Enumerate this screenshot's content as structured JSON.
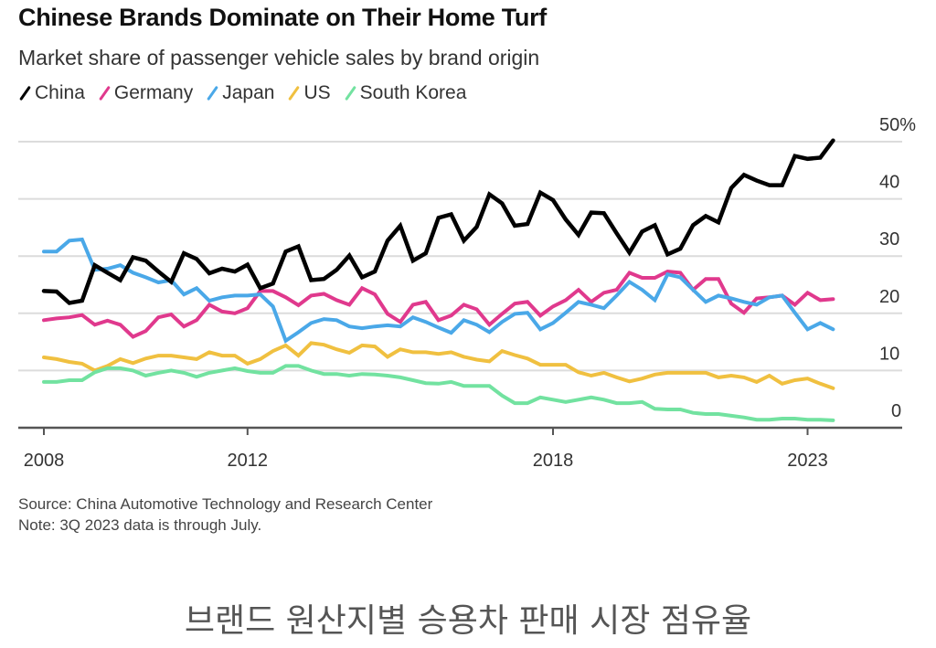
{
  "header": {
    "title": "Chinese Brands Dominate on Their Home Turf",
    "subtitle": "Market share of passenger vehicle sales by brand origin"
  },
  "legend": [
    {
      "label": "China",
      "color": "#000000"
    },
    {
      "label": "Germany",
      "color": "#e0398d"
    },
    {
      "label": "Japan",
      "color": "#4aa8e8"
    },
    {
      "label": "US",
      "color": "#f0c040"
    },
    {
      "label": "South Korea",
      "color": "#72e2a0"
    }
  ],
  "footer": {
    "source": "Source: China Automotive Technology and Research Center",
    "note": "Note: 3Q 2023 data is through July."
  },
  "caption": "브랜드 원산지별 승용차 판매 시장 점유율",
  "chart_data": {
    "type": "line",
    "title": "Chinese Brands Dominate on Their Home Turf",
    "subtitle": "Market share of passenger vehicle sales by brand origin",
    "xlabel": "",
    "ylabel": "",
    "x_start": "2008 Q1",
    "x_end": "2023 Q3",
    "x_frequency": "quarterly",
    "x_ticks": [
      2008,
      2012,
      2018,
      2023
    ],
    "y_ticks": [
      "0",
      "10",
      "20",
      "30",
      "40",
      "50%"
    ],
    "ylim": [
      0,
      50
    ],
    "y_axis_position": "right",
    "grid": true,
    "legend_position": "top-left",
    "series": [
      {
        "name": "China",
        "color": "#000000",
        "values": [
          23.9,
          23.8,
          21.8,
          22.2,
          28.4,
          27.1,
          25.8,
          29.8,
          29.2,
          27.3,
          25.5,
          30.5,
          29.5,
          27,
          27.8,
          27.3,
          28.5,
          24.4,
          25.2,
          30.8,
          31.7,
          25.8,
          26,
          27.6,
          30.1,
          26.3,
          27.3,
          32.7,
          35.3,
          29.2,
          30.5,
          36.7,
          37.3,
          32.7,
          35.1,
          40.8,
          39.2,
          35.3,
          35.6,
          41.1,
          39.8,
          36.4,
          33.7,
          37.6,
          37.5,
          34,
          30.6,
          34.3,
          35.4,
          30.3,
          31.3,
          35.4,
          37,
          35.9,
          41.9,
          44.2,
          43.2,
          42.4,
          42.4,
          47.5,
          47,
          47.2,
          50.2
        ]
      },
      {
        "name": "Germany",
        "color": "#e0398d",
        "values": [
          18.8,
          19.1,
          19.3,
          19.7,
          18,
          18.7,
          18,
          15.9,
          16.9,
          19.3,
          19.8,
          17.7,
          18.8,
          21.5,
          20.3,
          20,
          20.9,
          23.9,
          23.9,
          22.8,
          21.4,
          23.1,
          23.4,
          22.3,
          21.5,
          24.4,
          23.3,
          19.9,
          18.5,
          21.5,
          22,
          18.8,
          19.6,
          21.5,
          20.7,
          18,
          19.9,
          21.7,
          22,
          19.6,
          21.2,
          22.3,
          24.1,
          22,
          23.6,
          24.1,
          27.1,
          26.2,
          26.2,
          27.3,
          27.1,
          24.1,
          26,
          26,
          21.7,
          20.1,
          22.6,
          22.8,
          23.1,
          21.5,
          23.6,
          22.3,
          22.5
        ]
      },
      {
        "name": "Japan",
        "color": "#4aa8e8",
        "values": [
          30.8,
          30.8,
          32.7,
          32.9,
          27.6,
          27.8,
          28.4,
          27.1,
          26.3,
          25.4,
          25.8,
          23.3,
          24.4,
          22.2,
          22.8,
          23.1,
          23.1,
          23.3,
          21.2,
          15.2,
          16.7,
          18.3,
          19,
          18.8,
          17.7,
          17.4,
          17.7,
          17.9,
          17.7,
          19.3,
          18.5,
          17.5,
          16.6,
          18.8,
          18,
          16.7,
          18.5,
          19.9,
          20.1,
          17.2,
          18.3,
          20.1,
          22,
          21.5,
          20.9,
          23.1,
          25.5,
          24.1,
          22.3,
          26.8,
          26.3,
          24.1,
          22,
          23.1,
          22.6,
          22,
          21.5,
          22.8,
          23.1,
          20.1,
          17.2,
          18.3,
          17.2
        ]
      },
      {
        "name": "US",
        "color": "#f0c040",
        "values": [
          12.3,
          12,
          11.5,
          11.2,
          10,
          10.8,
          12,
          11.3,
          12.1,
          12.6,
          12.6,
          12.3,
          12,
          13.2,
          12.6,
          12.6,
          11.2,
          12,
          13.4,
          14.4,
          12.6,
          14.8,
          14.5,
          13.7,
          13.1,
          14.4,
          14.2,
          12.4,
          13.7,
          13.2,
          13.2,
          12.9,
          13.2,
          12.4,
          11.9,
          11.6,
          13.4,
          12.7,
          12.1,
          11,
          11,
          11,
          9.7,
          9.1,
          9.6,
          8.8,
          8.1,
          8.6,
          9.3,
          9.6,
          9.6,
          9.6,
          9.6,
          8.8,
          9.1,
          8.8,
          8,
          9.1,
          7.7,
          8.3,
          8.6,
          7.7,
          6.9
        ]
      },
      {
        "name": "South Korea",
        "color": "#72e2a0",
        "values": [
          8,
          8,
          8.3,
          8.3,
          9.7,
          10.4,
          10.4,
          10,
          9.1,
          9.6,
          10,
          9.6,
          8.9,
          9.6,
          10,
          10.4,
          9.9,
          9.6,
          9.6,
          10.8,
          10.8,
          10,
          9.4,
          9.4,
          9.1,
          9.4,
          9.3,
          9.1,
          8.8,
          8.3,
          7.8,
          7.7,
          8,
          7.3,
          7.3,
          7.3,
          5.6,
          4.3,
          4.3,
          5.3,
          4.9,
          4.5,
          4.9,
          5.3,
          4.9,
          4.3,
          4.3,
          4.5,
          3.3,
          3.2,
          3.2,
          2.6,
          2.4,
          2.4,
          2.1,
          1.8,
          1.4,
          1.4,
          1.6,
          1.6,
          1.4,
          1.4,
          1.3
        ]
      }
    ]
  }
}
